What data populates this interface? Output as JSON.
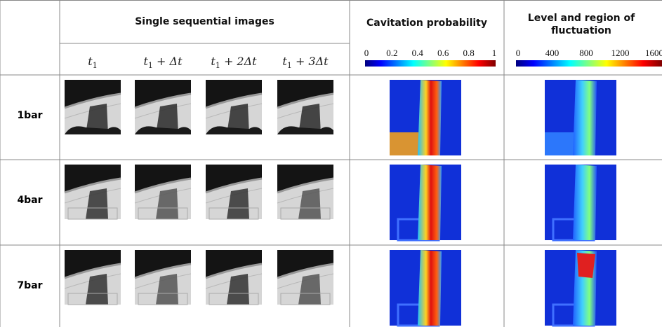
{
  "header": {
    "columns": [
      "Single sequential images",
      "Cavitation probability",
      "Level and region of fluctuation"
    ]
  },
  "time_labels": [
    {
      "var": "t",
      "sub": "1"
    },
    {
      "var": "t",
      "sub": "1",
      "suffix": "+ Δt"
    },
    {
      "var": "t",
      "sub": "1",
      "suffix": "+ 2Δt"
    },
    {
      "var": "t",
      "sub": "1",
      "suffix": "+ 3Δt"
    }
  ],
  "colorbars": [
    {
      "ticks": [
        "0",
        "0.2",
        "0.4",
        "0.6",
        "0.8",
        "1"
      ]
    },
    {
      "ticks": [
        "0",
        "400",
        "800",
        "1200",
        "1600"
      ]
    }
  ],
  "rows": [
    "1bar",
    "4bar",
    "7bar"
  ]
}
